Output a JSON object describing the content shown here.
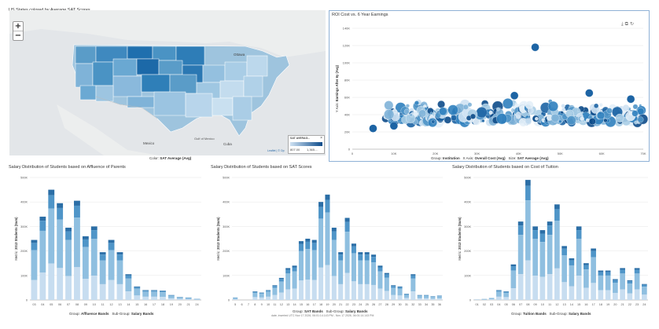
{
  "map": {
    "title": "US States colored by Average SAT Scores",
    "zoom_in": "+",
    "zoom_out": "−",
    "legend_title": "SAT AVERAG...",
    "legend_close": "×",
    "legend_min": "807.00",
    "legend_max": "1,365....",
    "attribution": "Leaflet | © Op",
    "labels": [
      "Ottawa",
      "Mexico",
      "Cuba",
      "Gulf of Mexico"
    ],
    "footer_key": "Color:",
    "footer_value": "SAT Average (Avg)"
  },
  "scatter": {
    "title": "ROI Cost vs. 6 Year Earnings",
    "icons": [
      "export-icon",
      "copy-icon",
      "refresh-icon"
    ],
    "footer": [
      {
        "key": "Group:",
        "value": "Institution"
      },
      {
        "key": "X Axis:",
        "value": "Overall Cost (Avg)"
      },
      {
        "key": "Size:",
        "value": "SAT Average (Avg)"
      }
    ],
    "chart_data": {
      "type": "scatter",
      "ylabel_prefix": "Y Axis:",
      "ylabel": "Earnings After 6y (Avg)",
      "xlim": [
        0,
        70000
      ],
      "ylim": [
        0,
        140000
      ],
      "xticks": [
        "0",
        "10K",
        "20K",
        "30K",
        "40K",
        "50K",
        "60K",
        "70K"
      ],
      "yticks": [
        "0",
        "20K",
        "40K",
        "60K",
        "80K",
        "100K",
        "120K",
        "140K"
      ],
      "highlight_points": [
        {
          "x": 44000,
          "y": 118000
        },
        {
          "x": 5000,
          "y": 24000
        },
        {
          "x": 57000,
          "y": 65000
        },
        {
          "x": 67000,
          "y": 58000
        },
        {
          "x": 39000,
          "y": 62000
        },
        {
          "x": 10000,
          "y": 27000
        }
      ],
      "cluster": {
        "x_range": [
          8000,
          70000
        ],
        "y_range": [
          20000,
          70000
        ]
      }
    }
  },
  "bars": [
    {
      "title": "Salary Distribution of Students based on Affluence of Parents",
      "metric_key": "Metric:",
      "metric_value": "2013 Students (Sum)",
      "footer": [
        {
          "key": "Group:",
          "value": "Affluence Bands"
        },
        {
          "key": "Sub-Group:",
          "value": "Salary Bands"
        }
      ],
      "note": "",
      "chart_data": {
        "type": "bar",
        "stacked": true,
        "ylim": [
          0,
          5000
        ],
        "yticks": [
          "0",
          "100K",
          "200K",
          "300K",
          "400K",
          "500K"
        ],
        "categories": [
          "03",
          "04",
          "05",
          "06",
          "07",
          "08",
          "09",
          "10",
          "11",
          "12",
          "13",
          "14",
          "15",
          "16",
          "17",
          "18",
          "19",
          "20",
          "21",
          "24"
        ],
        "values": [
          2450,
          3400,
          4500,
          3950,
          2950,
          4050,
          2600,
          3000,
          1950,
          2450,
          1950,
          1050,
          550,
          400,
          400,
          380,
          200,
          120,
          100,
          50
        ]
      }
    },
    {
      "title": "Salary Distribution of Students based on SAT Scores",
      "metric_key": "Metric:",
      "metric_value": "2013 Students (Sum)",
      "footer": [
        {
          "key": "Group:",
          "value": "SAT Bands"
        },
        {
          "key": "Sub-Group:",
          "value": "Salary Bands"
        }
      ],
      "note": "date, inserted UTC Nov 17 2026, 06:01:14.143 PM - Nov 17 2026, 06:01:14.143 PM",
      "chart_data": {
        "type": "bar",
        "stacked": true,
        "ylim": [
          0,
          5000
        ],
        "yticks": [
          "0",
          "100K",
          "200K",
          "300K",
          "400K",
          "500K"
        ],
        "categories": [
          "5",
          "6",
          "7",
          "8",
          "9",
          "10",
          "11",
          "12",
          "13",
          "14",
          "15",
          "16",
          "17",
          "18",
          "19",
          "20",
          "21",
          "22",
          "23",
          "24",
          "25",
          "26",
          "27",
          "28",
          "29",
          "30",
          "31",
          "32",
          "33",
          "34",
          "35",
          "36"
        ],
        "values": [
          100,
          0,
          0,
          350,
          300,
          400,
          600,
          900,
          1300,
          1400,
          2400,
          2500,
          2450,
          4000,
          4300,
          2950,
          1950,
          3350,
          2300,
          1950,
          1950,
          1850,
          1400,
          1100,
          600,
          550,
          250,
          1050,
          200,
          200,
          150,
          180
        ]
      }
    },
    {
      "title": "Salary Distribution of Students based on Cost of Tuition",
      "metric_key": "Metric:",
      "metric_value": "2013 Students (Sum)",
      "footer": [
        {
          "key": "Group:",
          "value": "Tuition Bands"
        },
        {
          "key": "Sub-Group:",
          "value": "Salary Bands"
        }
      ],
      "note": "",
      "chart_data": {
        "type": "bar",
        "stacked": true,
        "ylim": [
          0,
          5000
        ],
        "yticks": [
          "0",
          "100K",
          "200K",
          "300K",
          "400K",
          "500K"
        ],
        "categories": [
          "01",
          "02",
          "03",
          "04",
          "05",
          "06",
          "07",
          "08",
          "09",
          "10",
          "11",
          "12",
          "13",
          "14",
          "15",
          "16",
          "17",
          "18",
          "19",
          "20",
          "21",
          "22",
          "23",
          "24"
        ],
        "values": [
          20,
          40,
          80,
          400,
          350,
          1450,
          3200,
          4900,
          3000,
          2850,
          3200,
          3900,
          2200,
          1700,
          3000,
          1500,
          2100,
          1200,
          1200,
          850,
          1300,
          800,
          1300,
          650
        ]
      }
    }
  ],
  "colors": {
    "bar_dark": "#2b6ea6",
    "bar_mid": "#4f95c8",
    "bar_light": "#8fbfe0",
    "bar_pale": "#c7ddf0",
    "bubble_dark": "#0d4b8a",
    "bubble_light": "#cfe2f3",
    "map_water": "#dfe3e6",
    "accent_border": "#8fb1d6"
  }
}
